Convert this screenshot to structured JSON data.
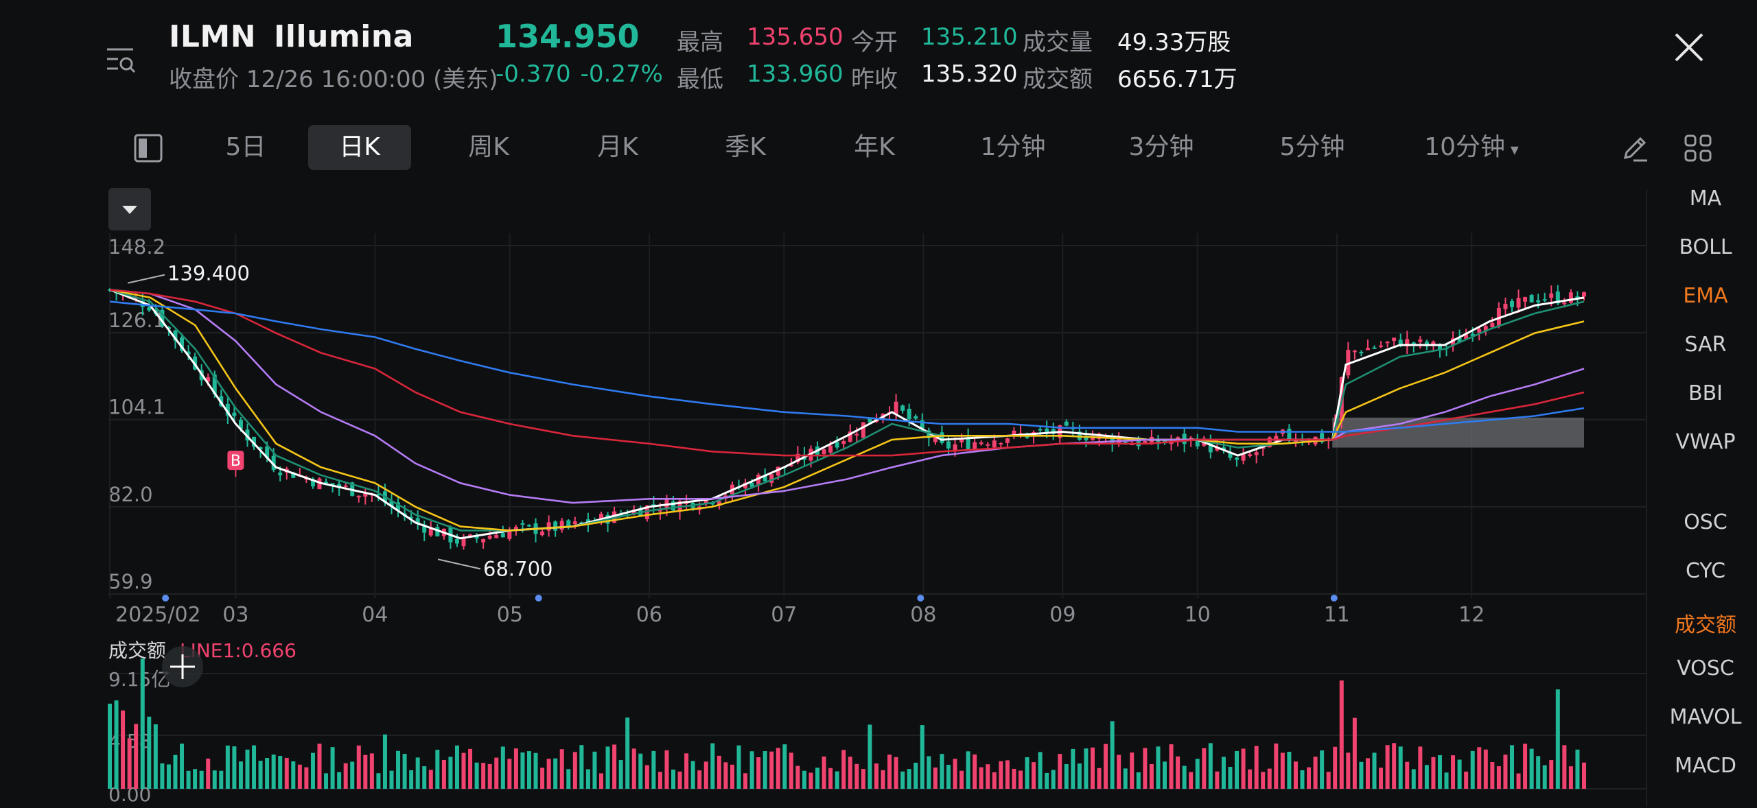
{
  "header": {
    "symbol": "ILMN",
    "name": "Illumina",
    "status": "收盘价 12/26 16:00:00 (美东)",
    "price": "134.950",
    "change": "-0.370",
    "change_pct": "-0.27%",
    "stats": {
      "high_label": "最高",
      "high": "135.650",
      "low_label": "最低",
      "low": "133.960",
      "open_label": "今开",
      "open": "135.210",
      "prev_close_label": "昨收",
      "prev_close": "135.320",
      "volume_label": "成交量",
      "volume": "49.33万股",
      "turnover_label": "成交额",
      "turnover": "6656.71万"
    }
  },
  "tabs": [
    {
      "label": "5日"
    },
    {
      "label": "日K",
      "active": true
    },
    {
      "label": "周K"
    },
    {
      "label": "月K"
    },
    {
      "label": "季K"
    },
    {
      "label": "年K"
    },
    {
      "label": "1分钟"
    },
    {
      "label": "3分钟"
    },
    {
      "label": "5分钟"
    },
    {
      "label": "10分钟"
    }
  ],
  "indicators": {
    "main": [
      "MA",
      "BOLL",
      "EMA",
      "SAR",
      "BBI",
      "VWAP"
    ],
    "main_active": "EMA",
    "sub": [
      "OSC",
      "CYC",
      "成交额",
      "VOSC",
      "MAVOL",
      "MACD"
    ],
    "sub_active": "成交额"
  },
  "chart": {
    "y_ticks": [
      "148.2",
      "126.1",
      "104.1",
      "82.0",
      "59.9"
    ],
    "x_ticks": [
      "2025/02",
      "03",
      "04",
      "05",
      "06",
      "07",
      "08",
      "09",
      "10",
      "11",
      "12"
    ],
    "max_label": "139.400",
    "min_label": "68.700",
    "marker": "B"
  },
  "volume_panel": {
    "title": "成交额",
    "line_label": "LINE1:0.666",
    "y_ticks": [
      "9.15亿",
      "4.58",
      "0.00"
    ]
  },
  "colors": {
    "up": "#f0436f",
    "down": "#21b89a",
    "ema_white": "#ffffff",
    "ema_green": "#1f8f73",
    "ema_yellow": "#f5c518",
    "ema_purple": "#b57cf5",
    "ema_red": "#d8263a",
    "ema_blue": "#2f7bf0",
    "active_indicator": "#f2781e"
  },
  "chart_data": {
    "type": "candlestick",
    "close_series": [
      {
        "x": "2025-02-01",
        "y": 137
      },
      {
        "x": "2025-02-10",
        "y": 133
      },
      {
        "x": "2025-02-20",
        "y": 118
      },
      {
        "x": "2025-03-01",
        "y": 103
      },
      {
        "x": "2025-03-10",
        "y": 92
      },
      {
        "x": "2025-03-20",
        "y": 88
      },
      {
        "x": "2025-04-01",
        "y": 85
      },
      {
        "x": "2025-04-10",
        "y": 78
      },
      {
        "x": "2025-04-20",
        "y": 73
      },
      {
        "x": "2025-05-01",
        "y": 76
      },
      {
        "x": "2025-05-15",
        "y": 77
      },
      {
        "x": "2025-06-01",
        "y": 82
      },
      {
        "x": "2025-06-15",
        "y": 84
      },
      {
        "x": "2025-07-01",
        "y": 92
      },
      {
        "x": "2025-07-15",
        "y": 100
      },
      {
        "x": "2025-07-25",
        "y": 108
      },
      {
        "x": "2025-08-05",
        "y": 97
      },
      {
        "x": "2025-08-20",
        "y": 100
      },
      {
        "x": "2025-09-01",
        "y": 101
      },
      {
        "x": "2025-09-20",
        "y": 98
      },
      {
        "x": "2025-10-01",
        "y": 99
      },
      {
        "x": "2025-10-10",
        "y": 93
      },
      {
        "x": "2025-10-20",
        "y": 100
      },
      {
        "x": "2025-10-31",
        "y": 99
      },
      {
        "x": "2025-11-03",
        "y": 121
      },
      {
        "x": "2025-11-15",
        "y": 124
      },
      {
        "x": "2025-11-25",
        "y": 122
      },
      {
        "x": "2025-12-05",
        "y": 130
      },
      {
        "x": "2025-12-15",
        "y": 135
      },
      {
        "x": "2025-12-26",
        "y": 134.95
      }
    ],
    "ema_lines": [
      {
        "color": "#ffffff",
        "values": [
          137,
          133,
          118,
          103,
          92,
          88,
          85,
          78,
          74,
          76,
          77,
          82,
          84,
          92,
          100,
          106,
          99,
          100,
          101,
          99,
          99,
          95,
          99,
          99,
          118,
          123,
          123,
          129,
          133,
          135
        ]
      },
      {
        "color": "#1f8f73",
        "values": [
          137,
          134,
          122,
          107,
          95,
          90,
          86,
          80,
          76,
          76,
          77,
          81,
          83,
          90,
          97,
          103,
          100,
          100,
          100,
          99,
          99,
          97,
          98,
          99,
          113,
          120,
          122,
          127,
          131,
          134
        ]
      },
      {
        "color": "#f5c518",
        "values": [
          137,
          135,
          128,
          112,
          98,
          92,
          88,
          82,
          77,
          76,
          77,
          80,
          82,
          87,
          94,
          99,
          100,
          100,
          100,
          99,
          99,
          98,
          98,
          99,
          106,
          112,
          116,
          121,
          126,
          129
        ]
      },
      {
        "color": "#b57cf5",
        "values": [
          137,
          136,
          132,
          124,
          113,
          106,
          100,
          93,
          88,
          85,
          83,
          84,
          84,
          86,
          89,
          92,
          95,
          97,
          98,
          99,
          99,
          99,
          99,
          99,
          101,
          103,
          106,
          110,
          113,
          117
        ]
      },
      {
        "color": "#d8263a",
        "values": [
          137,
          136,
          134,
          131,
          126,
          121,
          117,
          111,
          106,
          103,
          100,
          98,
          96,
          95,
          95,
          95,
          96,
          97,
          98,
          98,
          99,
          99,
          99,
          99,
          100,
          102,
          104,
          106,
          108,
          111
        ]
      },
      {
        "color": "#2f7bf0",
        "values": [
          134,
          133,
          132,
          131,
          129,
          127,
          125,
          122,
          119,
          116,
          113,
          110,
          108,
          106,
          105,
          104,
          103,
          103,
          102,
          102,
          102,
          101,
          101,
          101,
          101,
          102,
          103,
          104,
          105,
          107
        ]
      }
    ],
    "y_range": [
      59.9,
      148.2
    ],
    "volume_range": [
      0,
      9.15
    ]
  }
}
